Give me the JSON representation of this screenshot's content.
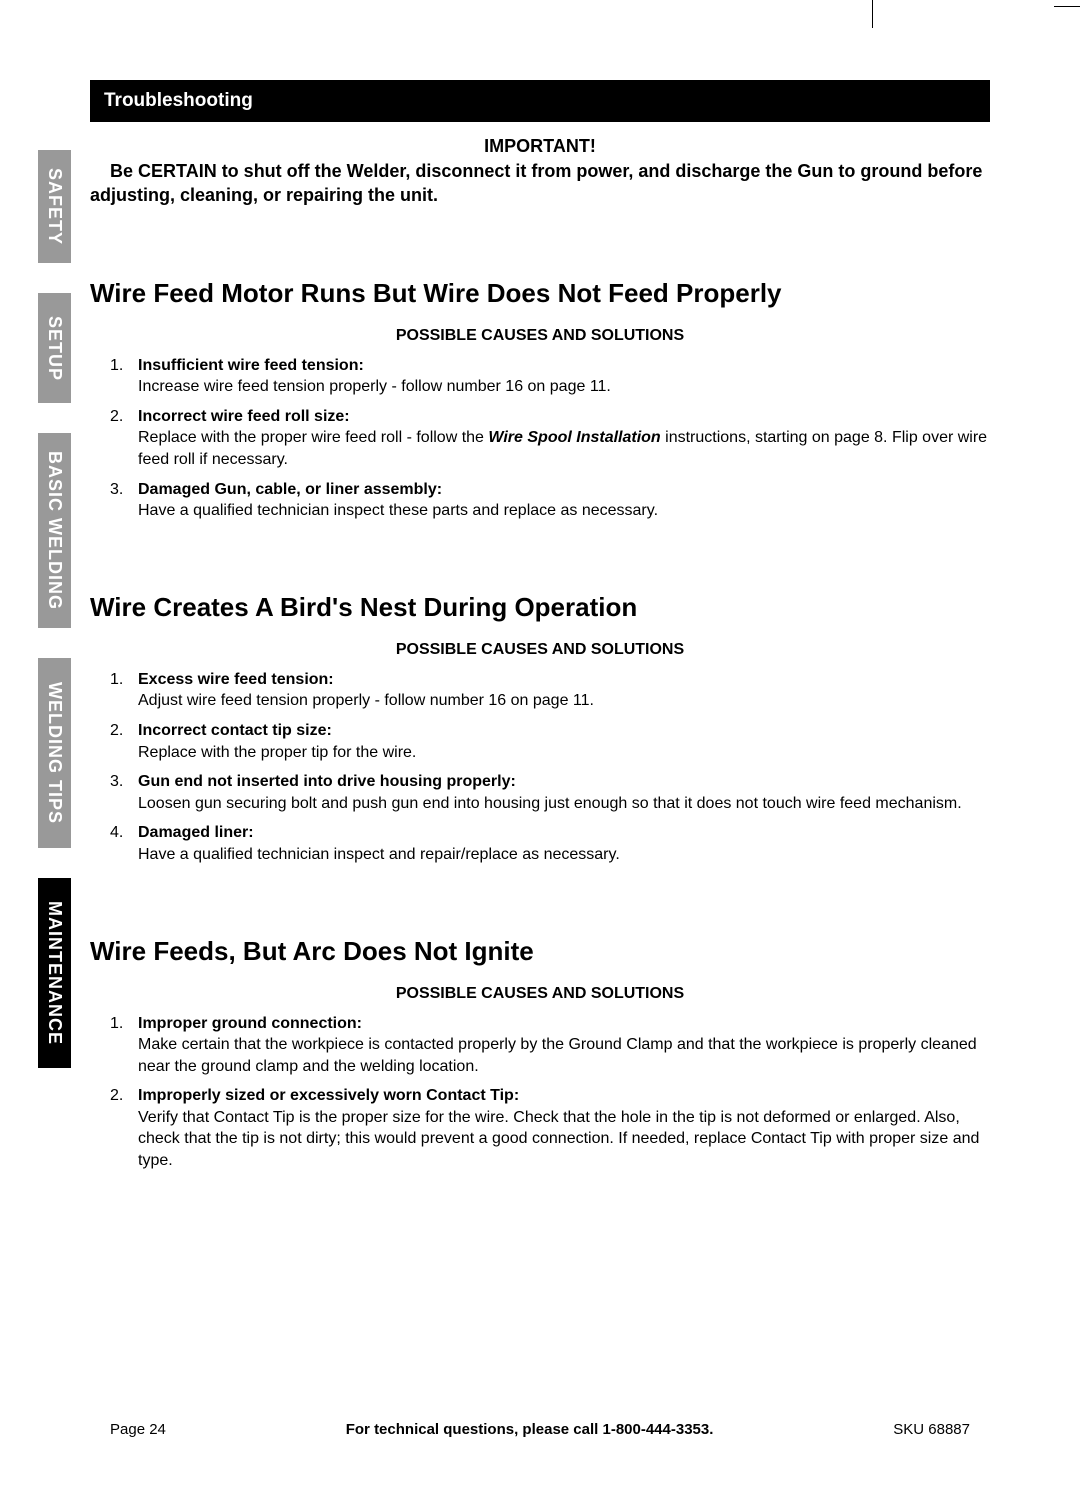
{
  "header": {
    "section_title": "Troubleshooting",
    "important_label": "IMPORTANT!",
    "important_text": "Be CERTAIN to shut off the Welder, disconnect it from power, and discharge the Gun to ground before adjusting, cleaning, or repairing the unit."
  },
  "tabs": [
    {
      "label": "SAFETY",
      "active": false,
      "size": "normal"
    },
    {
      "label": "SETUP",
      "active": false,
      "size": "normal"
    },
    {
      "label": "BASIC WELDING",
      "active": false,
      "size": "large"
    },
    {
      "label": "WELDING TIPS",
      "active": false,
      "size": "large"
    },
    {
      "label": "MAINTENANCE",
      "active": true,
      "size": "large"
    }
  ],
  "causes_header": "POSSIBLE CAUSES AND SOLUTIONS",
  "problems": [
    {
      "title": "Wire Feed Motor Runs But Wire Does Not Feed Properly",
      "items": [
        {
          "num": "1.",
          "title": "Insufficient wire feed tension:",
          "text": "Increase wire feed tension properly - follow number 16 on page 11."
        },
        {
          "num": "2.",
          "title": "Incorrect wire feed roll size:",
          "text_pre": "Replace with the proper wire feed roll - follow the ",
          "text_em": "Wire Spool Installation",
          "text_post": " instructions, starting on page 8. Flip over wire feed roll if necessary."
        },
        {
          "num": "3.",
          "title": "Damaged Gun, cable, or liner assembly:",
          "text": "Have a qualified technician inspect these parts and replace as necessary."
        }
      ]
    },
    {
      "title": "Wire Creates A Bird's Nest During Operation",
      "items": [
        {
          "num": "1.",
          "title": "Excess wire feed tension:",
          "text": "Adjust wire feed tension properly - follow number 16 on page 11."
        },
        {
          "num": "2.",
          "title": "Incorrect contact tip size:",
          "text": "Replace with the proper tip for the wire."
        },
        {
          "num": "3.",
          "title": "Gun end not inserted into drive housing properly:",
          "text": "Loosen gun securing bolt and push gun end into housing just enough so that it does not touch wire feed mechanism."
        },
        {
          "num": "4.",
          "title": "Damaged liner:",
          "text": "Have a qualified technician inspect and repair/replace as necessary."
        }
      ]
    },
    {
      "title": "Wire Feeds, But Arc Does Not Ignite",
      "items": [
        {
          "num": "1.",
          "title": "Improper ground connection:",
          "text": "Make certain that the workpiece is contacted properly by the Ground Clamp and that the workpiece is properly cleaned near the ground clamp and the welding location."
        },
        {
          "num": "2.",
          "title": "Improperly sized or excessively worn Contact Tip:",
          "text": "Verify that Contact Tip is the proper size for the wire.  Check that the hole in the tip is not deformed or enlarged.  Also, check that the tip is not dirty; this would prevent a good connection.  If needed, replace Contact Tip with proper size and type."
        }
      ]
    }
  ],
  "footer": {
    "page": "Page 24",
    "center": "For technical questions, please call 1-800-444-3353.",
    "sku": "SKU 68887"
  }
}
